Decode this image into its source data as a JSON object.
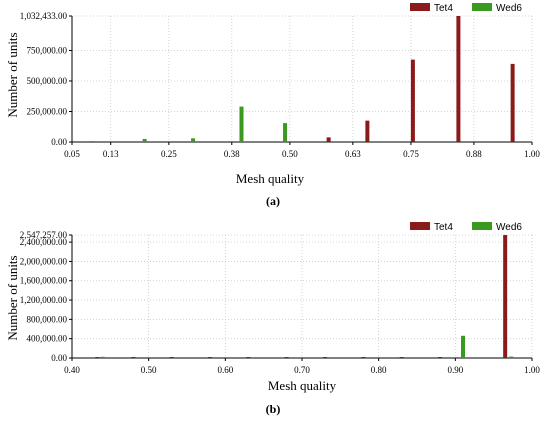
{
  "chart_data": [
    {
      "type": "bar",
      "panel": "(a)",
      "xlabel": "Mesh quality",
      "ylabel": "Number of units",
      "xlim": [
        0.05,
        1.0
      ],
      "ylim": [
        0,
        1032433
      ],
      "x_tick_labels": [
        "0.05",
        "0.13",
        "0.25",
        "0.38",
        "0.50",
        "0.63",
        "0.75",
        "0.88",
        "1.00"
      ],
      "x_tick_values": [
        0.05,
        0.13,
        0.25,
        0.38,
        0.5,
        0.63,
        0.75,
        0.88,
        1.0
      ],
      "y_tick_labels": [
        "0.00",
        "250,000.00",
        "500,000.00",
        "750,000.00",
        "1,032,433.00"
      ],
      "y_tick_values": [
        0,
        250000,
        500000,
        750000,
        1032433
      ],
      "grid": true,
      "legend_position": "top-right",
      "series": [
        {
          "name": "Tet4",
          "color": "#8b1a1a",
          "x": [
            0.58,
            0.66,
            0.754,
            0.848,
            0.96
          ],
          "values": [
            38000,
            175000,
            675000,
            1032433,
            640000
          ]
        },
        {
          "name": "Wed6",
          "color": "#3a9a1f",
          "x": [
            0.09,
            0.2,
            0.3,
            0.4,
            0.49
          ],
          "values": [
            8000,
            25000,
            30000,
            290000,
            155000
          ]
        }
      ]
    },
    {
      "type": "bar",
      "panel": "(b)",
      "xlabel": "Mesh quality",
      "ylabel": "Number of units",
      "xlim": [
        0.4,
        1.0
      ],
      "ylim": [
        0,
        2547257
      ],
      "x_tick_labels": [
        "0.40",
        "0.50",
        "0.60",
        "0.70",
        "0.80",
        "0.90",
        "1.00"
      ],
      "x_tick_values": [
        0.4,
        0.5,
        0.6,
        0.7,
        0.8,
        0.9,
        1.0
      ],
      "y_tick_labels": [
        "0.00",
        "400,000.00",
        "800,000.00",
        "1,200,000.00",
        "1,600,000.00",
        "2,000,000.00",
        "2,400,000.00",
        "2,547,257.00"
      ],
      "y_tick_values": [
        0,
        400000,
        800000,
        1200000,
        1600000,
        2000000,
        2400000,
        2547257
      ],
      "grid": true,
      "legend_position": "top-right",
      "series": [
        {
          "name": "Tet4",
          "color": "#8b1a1a",
          "x": [
            0.433,
            0.48,
            0.53,
            0.58,
            0.63,
            0.68,
            0.73,
            0.78,
            0.83,
            0.88,
            0.965
          ],
          "values": [
            5000,
            5000,
            5000,
            5000,
            5000,
            5000,
            5000,
            5000,
            5000,
            5000,
            2547257
          ]
        },
        {
          "name": "Wed6",
          "color": "#3a9a1f",
          "x": [
            0.44,
            0.91,
            0.973
          ],
          "values": [
            25000,
            460000,
            30000
          ]
        }
      ]
    }
  ]
}
